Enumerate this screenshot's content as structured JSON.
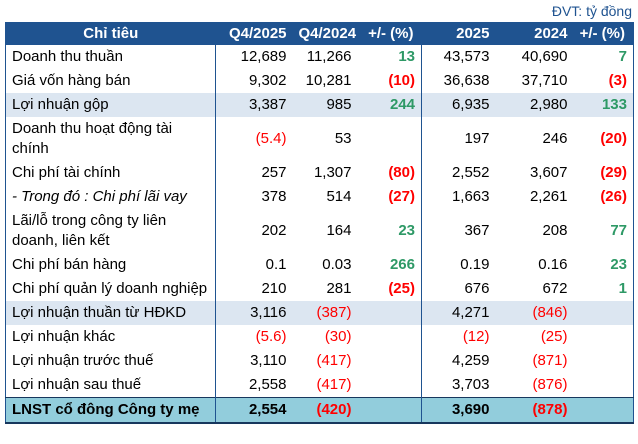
{
  "unit_note": "ĐVT: tỷ đồng",
  "colors": {
    "header_bg": "#1F5390",
    "subtotal_row_bg": "#DCE6F1",
    "total_row_bg": "#92CDDC",
    "positive_value": "#2E9966",
    "negative_value": "#FF0000",
    "unit_note_text": "#1F5390"
  },
  "table": {
    "columns": [
      "Chỉ tiêu",
      "Q4/2025",
      "Q4/2024",
      "+/- (%)",
      "2025",
      "2024",
      "+/- (%)"
    ],
    "rows": [
      {
        "label": "Doanh thu thuần",
        "style": "normal",
        "cells": [
          "12,689",
          "11,266",
          "13",
          "43,573",
          "40,690",
          "7"
        ]
      },
      {
        "label": "Giá vốn hàng bán",
        "style": "normal",
        "cells": [
          "9,302",
          "10,281",
          "(10)",
          "36,638",
          "37,710",
          "(3)"
        ]
      },
      {
        "label": "Lợi nhuận gộp",
        "style": "subtotal",
        "cells": [
          "3,387",
          "985",
          "244",
          "6,935",
          "2,980",
          "133"
        ]
      },
      {
        "label": "Doanh thu hoạt động tài chính",
        "style": "normal",
        "cells": [
          "(5.4)",
          "53",
          "",
          "197",
          "246",
          "(20)"
        ]
      },
      {
        "label": "Chi phí tài chính",
        "style": "normal",
        "cells": [
          "257",
          "1,307",
          "(80)",
          "2,552",
          "3,607",
          "(29)"
        ]
      },
      {
        "label": "- Trong đó : Chi phí lãi vay",
        "style": "italic",
        "cells": [
          "378",
          "514",
          "(27)",
          "1,663",
          "2,261",
          "(26)"
        ]
      },
      {
        "label": "Lãi/lỗ trong công ty liên doanh, liên kết",
        "style": "normal",
        "cells": [
          "202",
          "164",
          "23",
          "367",
          "208",
          "77"
        ]
      },
      {
        "label": "Chi phí bán hàng",
        "style": "normal",
        "cells": [
          "0.1",
          "0.03",
          "266",
          "0.19",
          "0.16",
          "23"
        ]
      },
      {
        "label": "Chi phí quản lý doanh nghiệp",
        "style": "normal",
        "cells": [
          "210",
          "281",
          "(25)",
          "676",
          "672",
          "1"
        ]
      },
      {
        "label": "Lợi nhuận thuần từ HĐKD",
        "style": "subtotal",
        "cells": [
          "3,116",
          "(387)",
          "",
          "4,271",
          "(846)",
          ""
        ]
      },
      {
        "label": "Lợi nhuận khác",
        "style": "normal",
        "cells": [
          "(5.6)",
          "(30)",
          "",
          "(12)",
          "(25)",
          ""
        ]
      },
      {
        "label": "Lợi nhuận trước thuế",
        "style": "normal",
        "cells": [
          "3,110",
          "(417)",
          "",
          "4,259",
          "(871)",
          ""
        ]
      },
      {
        "label": "Lợi nhuận sau thuế",
        "style": "normal",
        "cells": [
          "2,558",
          "(417)",
          "",
          "3,703",
          "(876)",
          ""
        ]
      },
      {
        "label": "LNST cổ đông Công ty mẹ",
        "style": "total",
        "cells": [
          "2,554",
          "(420)",
          "",
          "3,690",
          "(878)",
          ""
        ]
      }
    ]
  }
}
